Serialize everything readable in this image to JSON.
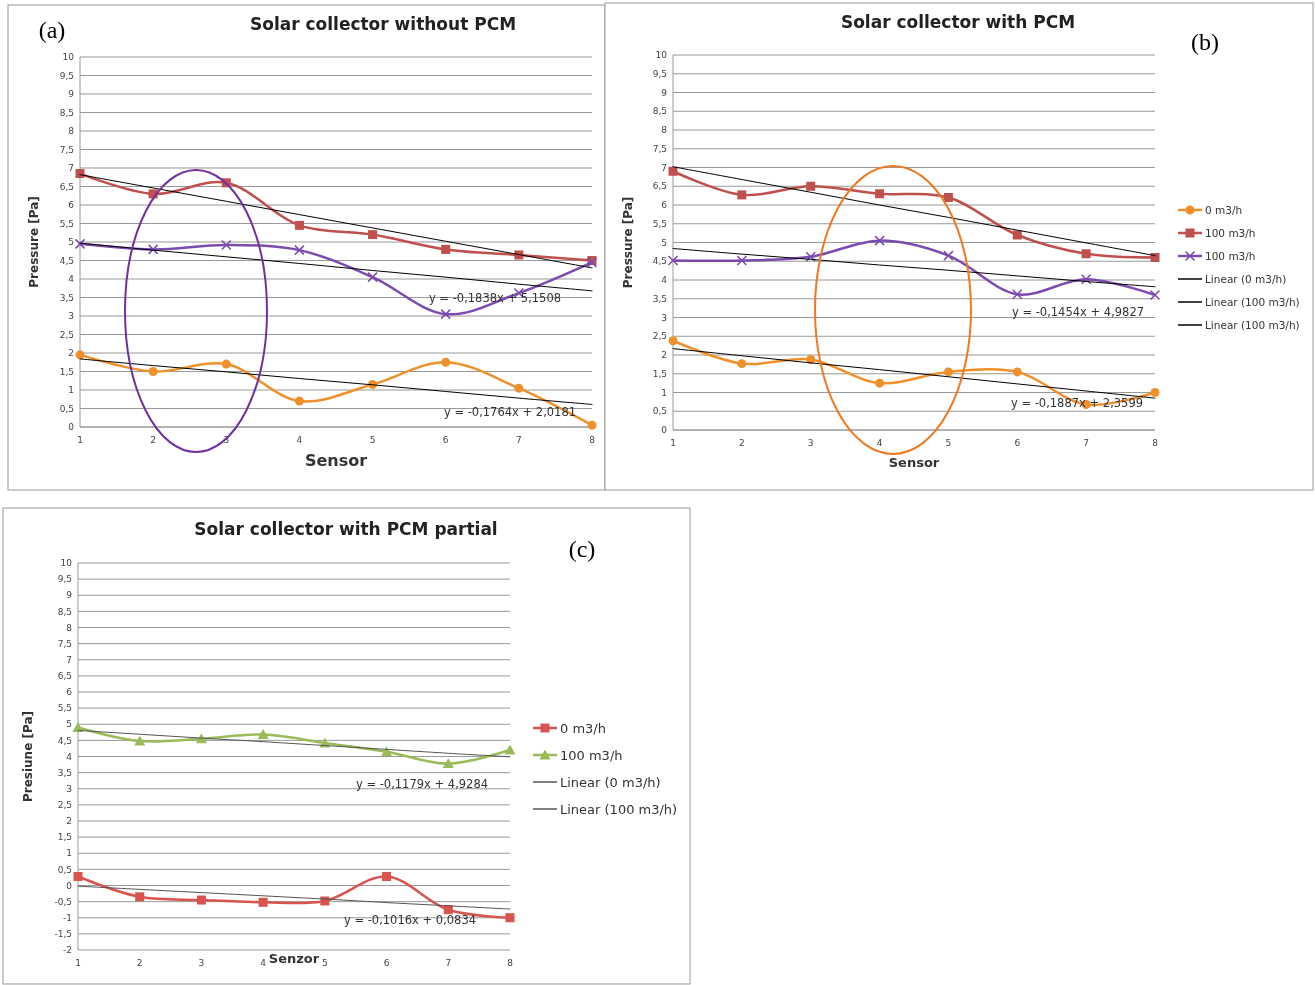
{
  "chart_data": [
    {
      "type": "line",
      "title": "Solar collector without PCM",
      "xlabel": "Sensor",
      "ylabel": "Pressure [Pa]",
      "categories": [
        "1",
        "2",
        "3",
        "4",
        "5",
        "6",
        "7",
        "8"
      ],
      "ylim": [
        0,
        10
      ],
      "yticks": [
        0,
        {
          "value": 0.5,
          "label": "0,5"
        },
        1,
        {
          "value": 1.5,
          "label": "1,5"
        },
        2,
        {
          "value": 2.5,
          "label": "2,5"
        },
        3,
        {
          "value": 3.5,
          "label": "3,5"
        },
        4,
        {
          "value": 4.5,
          "label": "4,5"
        },
        5,
        {
          "value": 5.5,
          "label": "5,5"
        },
        6,
        {
          "value": 6.5,
          "label": "6,5"
        },
        7,
        {
          "value": 7.5,
          "label": "7,5"
        },
        8,
        {
          "value": 8.5,
          "label": "8,5"
        },
        9,
        {
          "value": 9.5,
          "label": "9,5"
        },
        10
      ],
      "grid": "y",
      "legend": false,
      "line_style": "solid",
      "series": [
        {
          "color": "#f0902a",
          "marker": "circle",
          "values": [
            1.95,
            1.5,
            1.7,
            0.7,
            1.15,
            1.75,
            1.05,
            0.05
          ]
        },
        {
          "color": "#c0504d",
          "marker": "square",
          "values": [
            6.85,
            6.3,
            6.6,
            5.45,
            5.2,
            4.8,
            4.65,
            4.5
          ]
        },
        {
          "color": "#7b4bb0",
          "marker": "cross",
          "values": [
            4.95,
            4.8,
            4.92,
            4.78,
            4.05,
            3.05,
            3.62,
            4.45
          ]
        },
        {
          "color": "#000000",
          "marker": "none",
          "values": [
            1.84,
            1.66,
            1.49,
            1.31,
            1.14,
            0.96,
            0.78,
            0.61
          ]
        },
        {
          "color": "#000000",
          "marker": "none",
          "values": [
            6.82,
            6.46,
            6.1,
            5.74,
            5.38,
            5.02,
            4.66,
            4.3
          ]
        },
        {
          "color": "#000000",
          "marker": "none",
          "values": [
            4.97,
            4.78,
            4.6,
            4.42,
            4.23,
            4.05,
            3.86,
            3.68
          ]
        }
      ],
      "annotations": [
        "(a)",
        "y = -0,1838x + 5,1508",
        "y = -0,1764x + 2,0181"
      ]
    },
    {
      "type": "line",
      "title": "Solar collector with PCM",
      "xlabel": "Sensor",
      "ylabel": "Pressure [Pa]",
      "categories": [
        "1",
        "2",
        "3",
        "4",
        "5",
        "6",
        "7",
        "8"
      ],
      "ylim": [
        0,
        10
      ],
      "yticks": [
        0,
        {
          "value": 0.5,
          "label": "0,5"
        },
        1,
        {
          "value": 1.5,
          "label": "1,5"
        },
        2,
        {
          "value": 2.5,
          "label": "2,5"
        },
        3,
        {
          "value": 3.5,
          "label": "3,5"
        },
        4,
        {
          "value": 4.5,
          "label": "4,5"
        },
        5,
        {
          "value": 5.5,
          "label": "5,5"
        },
        6,
        {
          "value": 6.5,
          "label": "6,5"
        },
        7,
        {
          "value": 7.5,
          "label": "7,5"
        },
        8,
        {
          "value": 8.5,
          "label": "8,5"
        },
        9,
        {
          "value": 9.5,
          "label": "9,5"
        },
        10
      ],
      "grid": "y",
      "legend": "right",
      "line_style": "solid",
      "series": [
        {
          "name": "0 m3/h",
          "color": "#f0902a",
          "marker": "circle",
          "values": [
            2.38,
            1.77,
            1.88,
            1.25,
            1.55,
            1.55,
            0.68,
            1.0
          ]
        },
        {
          "name": "100 m3/h",
          "color": "#c0504d",
          "marker": "square",
          "values": [
            6.9,
            6.27,
            6.5,
            6.3,
            6.2,
            5.2,
            4.7,
            4.6
          ]
        },
        {
          "name": "100 m3/h",
          "color": "#7b4bb0",
          "marker": "cross",
          "values": [
            4.52,
            4.52,
            4.62,
            5.05,
            4.65,
            3.62,
            4.02,
            3.6
          ]
        },
        {
          "name": "Linear (0 m3/h)",
          "color": "#000000",
          "marker": "none",
          "values": [
            2.17,
            1.98,
            1.79,
            1.61,
            1.42,
            1.23,
            1.04,
            0.85
          ]
        },
        {
          "name": "Linear (100 m3/h)",
          "color": "#000000",
          "marker": "none",
          "values": [
            7.02,
            6.68,
            6.34,
            6.0,
            5.67,
            5.33,
            4.99,
            4.65
          ]
        },
        {
          "name": "Linear (100 m3/h)",
          "color": "#000000",
          "marker": "none",
          "values": [
            4.84,
            4.69,
            4.55,
            4.4,
            4.26,
            4.11,
            3.96,
            3.82
          ]
        }
      ],
      "annotations": [
        "(b)",
        "y = -0,1454x + 4,9827",
        "y = -0,1887x + 2,3599"
      ]
    },
    {
      "type": "line",
      "title": "Solar collector with  PCM partial",
      "xlabel": "Senzor",
      "ylabel": "Presiune [Pa]",
      "categories": [
        "1",
        "2",
        "3",
        "4",
        "5",
        "6",
        "7",
        "8"
      ],
      "ylim": [
        -2,
        10
      ],
      "yticks": [
        -2,
        {
          "value": -1.5,
          "label": "-1,5"
        },
        -1,
        {
          "value": -0.5,
          "label": "-0,5"
        },
        0,
        {
          "value": 0.5,
          "label": "0,5"
        },
        1,
        {
          "value": 1.5,
          "label": "1,5"
        },
        2,
        {
          "value": 2.5,
          "label": "2,5"
        },
        3,
        {
          "value": 3.5,
          "label": "3,5"
        },
        4,
        {
          "value": 4.5,
          "label": "4,5"
        },
        5,
        {
          "value": 5.5,
          "label": "5,5"
        },
        6,
        {
          "value": 6.5,
          "label": "6,5"
        },
        7,
        {
          "value": 7.5,
          "label": "7,5"
        },
        8,
        {
          "value": 8.5,
          "label": "8,5"
        },
        9,
        {
          "value": 9.5,
          "label": "9,5"
        },
        10
      ],
      "grid": "y",
      "legend": "right",
      "line_style": "solid",
      "series": [
        {
          "name": "0 m3/h",
          "color": "#d9534f",
          "marker": "square",
          "values": [
            0.28,
            -0.35,
            -0.45,
            -0.52,
            -0.48,
            0.28,
            -0.75,
            -1.0
          ]
        },
        {
          "name": "100 m3/h",
          "color": "#9bbb59",
          "marker": "triangle",
          "values": [
            4.9,
            4.48,
            4.55,
            4.68,
            4.42,
            4.15,
            3.78,
            4.2
          ]
        },
        {
          "name": "Linear (0 m3/h)",
          "color": "#555555",
          "marker": "none",
          "values": [
            -0.02,
            -0.12,
            -0.22,
            -0.32,
            -0.42,
            -0.53,
            -0.63,
            -0.73
          ]
        },
        {
          "name": "Linear (100 m3/h)",
          "color": "#555555",
          "marker": "none",
          "values": [
            4.81,
            4.69,
            4.57,
            4.46,
            4.34,
            4.22,
            4.1,
            3.99
          ]
        }
      ],
      "annotations": [
        "(c)",
        "y = -0,1179x + 4,9284",
        "y = -0,1016x + 0,0834"
      ]
    }
  ]
}
